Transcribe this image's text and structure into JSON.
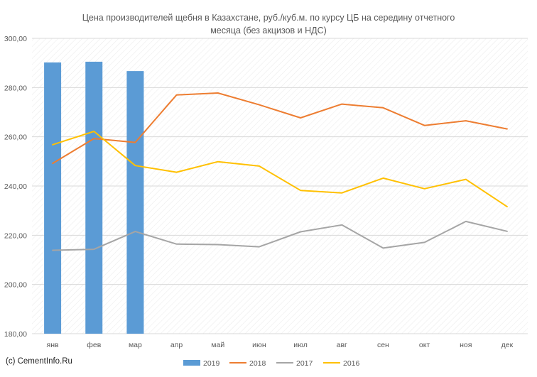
{
  "chart_data": {
    "type": "bar",
    "title_lines": [
      "Цена производителей щебня в Казахстане, руб./куб.м. по курсу ЦБ на середину отчетного",
      "месяца (без акцизов и НДС)"
    ],
    "categories": [
      "янв",
      "фев",
      "мар",
      "апр",
      "май",
      "июн",
      "июл",
      "авг",
      "сен",
      "окт",
      "ноя",
      "дек"
    ],
    "y_ticks": [
      "180,00",
      "200,00",
      "220,00",
      "240,00",
      "260,00",
      "280,00",
      "300,00"
    ],
    "ylim": [
      180,
      300
    ],
    "grid": true,
    "legend_position": "bottom",
    "series": [
      {
        "name": "2019",
        "kind": "bar",
        "color": "#5B9BD5",
        "values": [
          290.2,
          290.5,
          286.7,
          null,
          null,
          null,
          null,
          null,
          null,
          null,
          null,
          null
        ]
      },
      {
        "name": "2018",
        "kind": "line",
        "color": "#ED7D31",
        "values": [
          249.2,
          259.3,
          257.7,
          277.0,
          277.8,
          273.0,
          267.7,
          273.3,
          271.8,
          264.6,
          266.5,
          263.2
        ]
      },
      {
        "name": "2017",
        "kind": "line",
        "color": "#A5A5A5",
        "values": [
          213.9,
          214.3,
          221.5,
          216.4,
          216.2,
          215.3,
          221.4,
          224.2,
          214.8,
          217.1,
          225.6,
          221.6
        ]
      },
      {
        "name": "2016",
        "kind": "line",
        "color": "#FFC000",
        "values": [
          256.8,
          262.2,
          248.3,
          245.6,
          249.9,
          248.1,
          238.2,
          237.2,
          243.2,
          238.9,
          242.7,
          231.6
        ]
      }
    ]
  },
  "credit": "(c) CementInfo.Ru"
}
